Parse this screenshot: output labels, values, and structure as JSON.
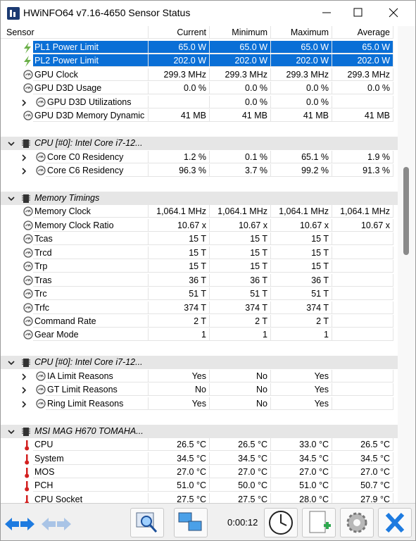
{
  "window": {
    "title": "HWiNFO64 v7.16-4650 Sensor Status"
  },
  "table": {
    "columns": [
      "Sensor",
      "Current",
      "Minimum",
      "Maximum",
      "Average"
    ],
    "sections": [
      {
        "rows": [
          {
            "label": "PL1 Power Limit",
            "icon": "power",
            "selected": true,
            "values": [
              "65.0 W",
              "65.0 W",
              "65.0 W",
              "65.0 W"
            ]
          },
          {
            "label": "PL2 Power Limit",
            "icon": "power",
            "selected": true,
            "values": [
              "202.0 W",
              "202.0 W",
              "202.0 W",
              "202.0 W"
            ]
          },
          {
            "label": "GPU Clock",
            "icon": "gauge",
            "values": [
              "299.3 MHz",
              "299.3 MHz",
              "299.3 MHz",
              "299.3 MHz"
            ]
          },
          {
            "label": "GPU D3D Usage",
            "icon": "gauge",
            "values": [
              "0.0 %",
              "0.0 %",
              "0.0 %",
              "0.0 %"
            ]
          },
          {
            "label": "GPU D3D Utilizations",
            "icon": "gauge",
            "expand": true,
            "values": [
              null,
              "0.0 %",
              "0.0 %",
              null
            ]
          },
          {
            "label": "GPU D3D Memory Dynamic",
            "icon": "gauge",
            "values": [
              "41 MB",
              "41 MB",
              "41 MB",
              "41 MB"
            ]
          }
        ]
      },
      {
        "title": "CPU [#0]: Intel Core i7-12...",
        "rows": [
          {
            "label": "Core C0 Residency",
            "icon": "gauge",
            "expand": true,
            "values": [
              "1.2 %",
              "0.1 %",
              "65.1 %",
              "1.9 %"
            ]
          },
          {
            "label": "Core C6 Residency",
            "icon": "gauge",
            "expand": true,
            "values": [
              "96.3 %",
              "3.7 %",
              "99.2 %",
              "91.3 %"
            ]
          }
        ]
      },
      {
        "title": "Memory Timings",
        "rows": [
          {
            "label": "Memory Clock",
            "icon": "gauge",
            "values": [
              "1,064.1 MHz",
              "1,064.1 MHz",
              "1,064.1 MHz",
              "1,064.1 MHz"
            ]
          },
          {
            "label": "Memory Clock Ratio",
            "icon": "gauge",
            "values": [
              "10.67 x",
              "10.67 x",
              "10.67 x",
              "10.67 x"
            ]
          },
          {
            "label": "Tcas",
            "icon": "gauge",
            "values": [
              "15 T",
              "15 T",
              "15 T",
              null
            ]
          },
          {
            "label": "Trcd",
            "icon": "gauge",
            "values": [
              "15 T",
              "15 T",
              "15 T",
              null
            ]
          },
          {
            "label": "Trp",
            "icon": "gauge",
            "values": [
              "15 T",
              "15 T",
              "15 T",
              null
            ]
          },
          {
            "label": "Tras",
            "icon": "gauge",
            "values": [
              "36 T",
              "36 T",
              "36 T",
              null
            ]
          },
          {
            "label": "Trc",
            "icon": "gauge",
            "values": [
              "51 T",
              "51 T",
              "51 T",
              null
            ]
          },
          {
            "label": "Trfc",
            "icon": "gauge",
            "values": [
              "374 T",
              "374 T",
              "374 T",
              null
            ]
          },
          {
            "label": "Command Rate",
            "icon": "gauge",
            "values": [
              "2 T",
              "2 T",
              "2 T",
              null
            ]
          },
          {
            "label": "Gear Mode",
            "icon": "gauge",
            "values": [
              "1",
              "1",
              "1",
              null
            ]
          }
        ]
      },
      {
        "title": "CPU [#0]: Intel Core i7-12...",
        "rows": [
          {
            "label": "IA Limit Reasons",
            "icon": "gauge",
            "expand": true,
            "values": [
              "Yes",
              "No",
              "Yes",
              null
            ]
          },
          {
            "label": "GT Limit Reasons",
            "icon": "gauge",
            "expand": true,
            "values": [
              "No",
              "No",
              "Yes",
              null
            ]
          },
          {
            "label": "Ring Limit Reasons",
            "icon": "gauge",
            "expand": true,
            "values": [
              "Yes",
              "No",
              "Yes",
              null
            ]
          }
        ]
      },
      {
        "title": "MSI MAG H670 TOMAHA...",
        "rows": [
          {
            "label": "CPU",
            "icon": "temp",
            "values": [
              "26.5 °C",
              "26.5 °C",
              "33.0 °C",
              "26.5 °C"
            ]
          },
          {
            "label": "System",
            "icon": "temp",
            "values": [
              "34.5 °C",
              "34.5 °C",
              "34.5 °C",
              "34.5 °C"
            ]
          },
          {
            "label": "MOS",
            "icon": "temp",
            "values": [
              "27.0 °C",
              "27.0 °C",
              "27.0 °C",
              "27.0 °C"
            ]
          },
          {
            "label": "PCH",
            "icon": "temp",
            "values": [
              "51.0 °C",
              "50.0 °C",
              "51.0 °C",
              "50.7 °C"
            ]
          },
          {
            "label": "CPU Socket",
            "icon": "temp",
            "values": [
              "27.5 °C",
              "27.5 °C",
              "28.0 °C",
              "27.9 °C"
            ]
          }
        ]
      }
    ]
  },
  "footer": {
    "timer": "0:00:12"
  }
}
